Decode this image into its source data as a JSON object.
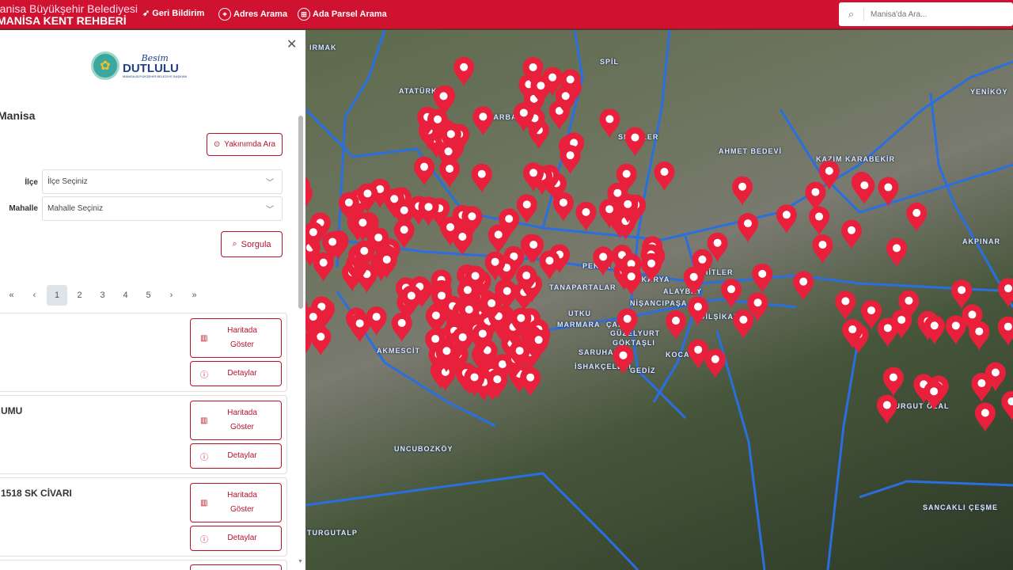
{
  "header": {
    "org": "Manisa Büyükşehir Belediyesi",
    "app": "MANİSA KENT REHBERİ",
    "nav": [
      {
        "label": "Geri Bildirim",
        "icon": "feedback-icon"
      },
      {
        "label": "Adres Arama",
        "icon": "address-pin-icon"
      },
      {
        "label": "Ada Parsel Arama",
        "icon": "parcel-icon"
      }
    ],
    "search_placeholder": "Manisa'da Ara..."
  },
  "panel": {
    "logo_top": "Besim",
    "logo_name": "DUTLULU",
    "logo_sub": "MANİSA BÜYÜKŞEHİR BELEDİYE BAŞKANI",
    "city": "Manisa",
    "nearby_label": "Yakınımda Ara",
    "ilce_label": "İlçe",
    "ilce_value": "İlçe Seçiniz",
    "mahalle_label": "Mahalle",
    "mahalle_value": "Mahalle Seçiniz",
    "query_label": "Sorgula",
    "pager": {
      "first": "«",
      "prev": "‹",
      "pages": [
        "1",
        "2",
        "3",
        "4",
        "5"
      ],
      "current": "1",
      "next": "›",
      "last": "»"
    },
    "results": [
      {
        "title": "",
        "map_label": "Haritada Göster",
        "details_label": "Detaylar"
      },
      {
        "title": "UMU",
        "map_label": "Haritada Göster",
        "details_label": "Detaylar"
      },
      {
        "title": "1518 SK CİVARI",
        "map_label": "Haritada Göster",
        "details_label": "Detaylar"
      }
    ]
  },
  "map": {
    "labels": [
      "IRMAK",
      "ATATÜRK",
      "SPİL",
      "YENİKÖY",
      "BARBAROS",
      "SELVİLER",
      "AHMET BEDEVİ",
      "KAZIM KARABEKİR",
      "AKPINAR",
      "PEKER",
      "SAKARYA",
      "ŞEHİTLER",
      "TANAPARTALAR",
      "ALAYBEY",
      "NİŞANCIPAŞA",
      "DİLŞİKAR",
      "UTKU",
      "MARMARA",
      "ÇARŞI",
      "GÜZELYURT",
      "AKMESCİT",
      "SARUHAN",
      "GÖKTAŞLI",
      "KOCATEPE",
      "İSHAKÇELEBİ",
      "GEDİZ",
      "TURGUT ÖZAL",
      "UNCUBOZKÖY",
      "TURGUTALP",
      "SANCAKLI ÇEŞME"
    ],
    "marker_color": "#e8203c",
    "boundary_color": "#2a6fe0"
  },
  "colors": {
    "brand": "#cf1230"
  }
}
